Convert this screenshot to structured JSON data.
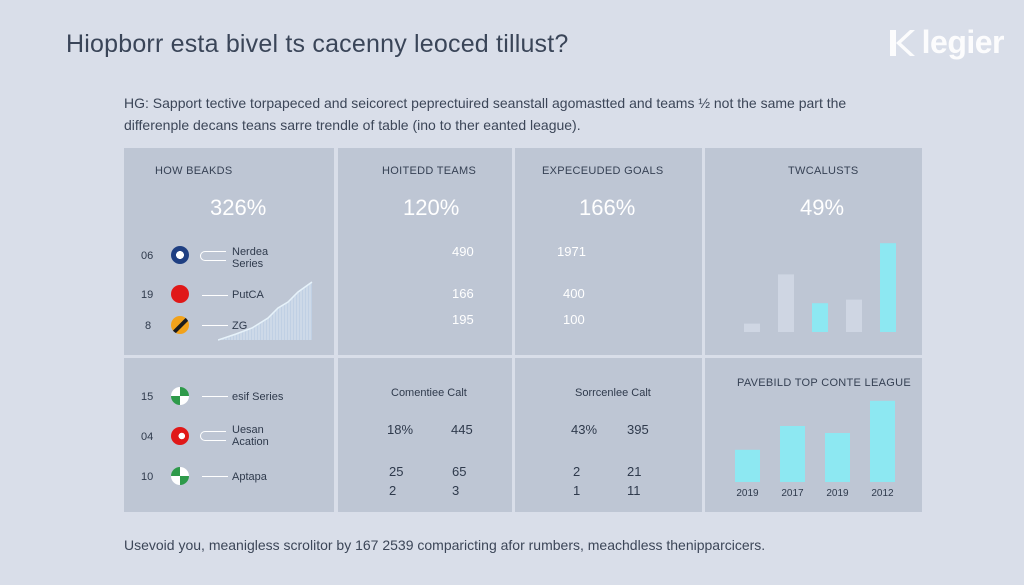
{
  "header": {
    "title": "Hiopborr esta bivel ts cacenny leoced tillust?",
    "description": "HG: Sapport tective torpapeced and seicorect peprectuired seanstall agomastted and teams ½ not the same part the differenple decans teans sarre trendle of table (ino to ther eanted league).",
    "logo_text": "legier"
  },
  "cards": {
    "how_beaks": {
      "label": "HOW BEAKDS",
      "value": "326%"
    },
    "hoitedd": {
      "label": "HOITEDD TEAMS",
      "value": "120%",
      "rows": [
        "490",
        "166",
        "195"
      ]
    },
    "expected": {
      "label": "EXPECEUDED GOALS",
      "value": "166%",
      "rows": [
        "1971",
        "400",
        "100"
      ]
    },
    "twcalusts": {
      "label": "TWCALUSTS",
      "value": "49%"
    }
  },
  "teams_top": [
    {
      "num": "06",
      "name": "Nerdea Series",
      "flag": "blue-white"
    },
    {
      "num": "19",
      "name": "PutCA",
      "flag": "red"
    },
    {
      "num": "8",
      "name": "ZG",
      "flag": "orange-black"
    }
  ],
  "teams_bottom": [
    {
      "num": "15",
      "name": "esif Series",
      "flag": "green-white"
    },
    {
      "num": "04",
      "name": "Uesan Acation",
      "flag": "red-white"
    },
    {
      "num": "10",
      "name": "Aptapa",
      "flag": "green-white"
    }
  ],
  "bottom_mid_left": {
    "label": "Comentiee Calt",
    "r1c1": "18%",
    "r1c2": "445",
    "r2c1": "25",
    "r2c2": "65",
    "r3c1": "2",
    "r3c2": "3"
  },
  "bottom_mid_right": {
    "label": "Sorrcenlee Calt",
    "r1c1": "43%",
    "r1c2": "395",
    "r2c1": "2",
    "r2c2": "21",
    "r3c1": "1",
    "r3c2": "11"
  },
  "chart_data": [
    {
      "type": "bar",
      "title": "",
      "categories": [
        "",
        "",
        "",
        "",
        ""
      ],
      "values": [
        7,
        48,
        24,
        27,
        74
      ],
      "ylim": [
        0,
        80
      ],
      "colors": [
        "#cfd6e3",
        "#cfd6e3",
        "#8de8f2",
        "#cfd6e3",
        "#8de8f2"
      ]
    },
    {
      "type": "bar",
      "title": "PAVEBILD TOP CONTE LEAGUE",
      "categories": [
        "2019",
        "2017",
        "2019",
        "2012"
      ],
      "values": [
        23,
        40,
        35,
        58
      ],
      "ylim": [
        0,
        60
      ],
      "colors": [
        "#8de8f2",
        "#8de8f2",
        "#8de8f2",
        "#8de8f2"
      ]
    }
  ],
  "footer": {
    "text": "Usevoid you, meanigless scrolitor by 167 2539 comparicting afor rumbers, meachdless thenipparcicers."
  },
  "colors": {
    "accent": "#8de8f2",
    "panel": "#bec6d4",
    "background": "#d9dee9"
  }
}
